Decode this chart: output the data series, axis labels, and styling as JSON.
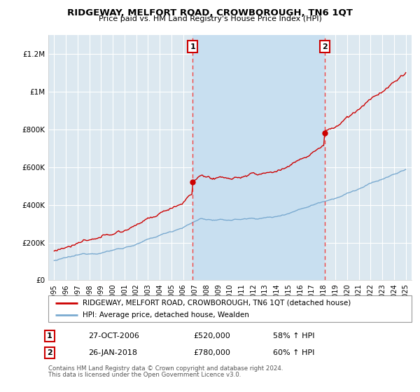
{
  "title": "RIDGEWAY, MELFORT ROAD, CROWBOROUGH, TN6 1QT",
  "subtitle": "Price paid vs. HM Land Registry's House Price Index (HPI)",
  "legend_line1": "RIDGEWAY, MELFORT ROAD, CROWBOROUGH, TN6 1QT (detached house)",
  "legend_line2": "HPI: Average price, detached house, Wealden",
  "footnote1": "Contains HM Land Registry data © Crown copyright and database right 2024.",
  "footnote2": "This data is licensed under the Open Government Licence v3.0.",
  "sale1_label": "1",
  "sale1_date": "27-OCT-2006",
  "sale1_price": "£520,000",
  "sale1_hpi": "58% ↑ HPI",
  "sale1_year": 2006.82,
  "sale1_value": 520000,
  "sale2_label": "2",
  "sale2_date": "26-JAN-2018",
  "sale2_price": "£780,000",
  "sale2_hpi": "60% ↑ HPI",
  "sale2_year": 2018.07,
  "sale2_value": 780000,
  "ylim_max": 1300000,
  "xlim_start": 1994.5,
  "xlim_end": 2025.5,
  "property_color": "#cc0000",
  "hpi_color": "#7aaad0",
  "vline_color": "#ee4444",
  "plot_bg": "#dce8f0",
  "shade_color": "#c8dff0",
  "grid_color": "#ffffff",
  "title_fontsize": 9,
  "subtitle_fontsize": 8
}
